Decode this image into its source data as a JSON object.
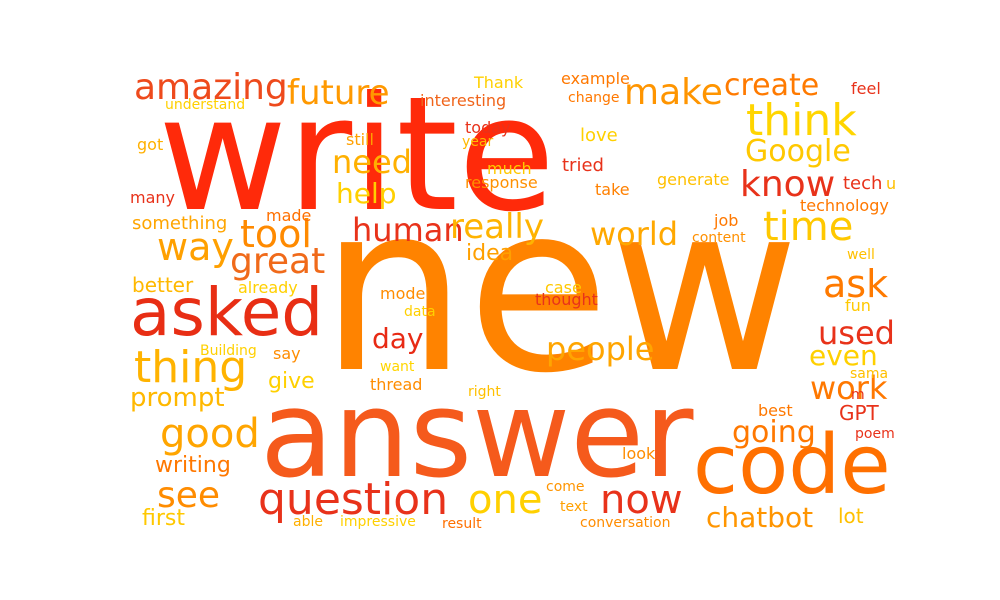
{
  "palette": {
    "red": "#e8321a",
    "orange_red": "#f45a1a",
    "orange": "#ff8300",
    "amber": "#ffa100",
    "gold": "#ffc000",
    "yellow": "#ffd500"
  },
  "words": [
    {
      "text": "new",
      "color": "#ff8300"
    },
    {
      "text": "write",
      "color": "#ff2a0a"
    },
    {
      "text": "answer",
      "color": "#f55a1c"
    },
    {
      "text": "code",
      "color": "#ff7000"
    },
    {
      "text": "asked",
      "color": "#e82e14"
    },
    {
      "text": "question",
      "color": "#e8321a"
    },
    {
      "text": "thing",
      "color": "#ffb300"
    },
    {
      "text": "think",
      "color": "#ffd500"
    },
    {
      "text": "know",
      "color": "#e8321a"
    },
    {
      "text": "amazing",
      "color": "#ee4a1c"
    },
    {
      "text": "future",
      "color": "#ff9900"
    },
    {
      "text": "make",
      "color": "#ff9500"
    },
    {
      "text": "create",
      "color": "#ff7a00"
    },
    {
      "text": "Google",
      "color": "#ffc800"
    },
    {
      "text": "need",
      "color": "#ffb000"
    },
    {
      "text": "help",
      "color": "#ffd000"
    },
    {
      "text": "time",
      "color": "#ffc800"
    },
    {
      "text": "way",
      "color": "#ffa000"
    },
    {
      "text": "tool",
      "color": "#ff8a00"
    },
    {
      "text": "great",
      "color": "#f06a1a"
    },
    {
      "text": "human",
      "color": "#e8321a"
    },
    {
      "text": "really",
      "color": "#ffb300"
    },
    {
      "text": "world",
      "color": "#ffa800"
    },
    {
      "text": "ask",
      "color": "#ff7a00"
    },
    {
      "text": "day",
      "color": "#e82a14"
    },
    {
      "text": "people",
      "color": "#ffa500"
    },
    {
      "text": "used",
      "color": "#e8321a"
    },
    {
      "text": "even",
      "color": "#ffd000"
    },
    {
      "text": "work",
      "color": "#ff7800"
    },
    {
      "text": "good",
      "color": "#ffa500"
    },
    {
      "text": "going",
      "color": "#ff7800"
    },
    {
      "text": "see",
      "color": "#ff8c00"
    },
    {
      "text": "one",
      "color": "#ffd000"
    },
    {
      "text": "now",
      "color": "#e8321a"
    },
    {
      "text": "chatbot",
      "color": "#ff9500"
    },
    {
      "text": "prompt",
      "color": "#ffb800"
    },
    {
      "text": "writing",
      "color": "#ff7800"
    },
    {
      "text": "first",
      "color": "#ffc800"
    },
    {
      "text": "better",
      "color": "#ffb800"
    },
    {
      "text": "something",
      "color": "#ffa500"
    },
    {
      "text": "give",
      "color": "#ffd000"
    },
    {
      "text": "idea",
      "color": "#ffa000"
    },
    {
      "text": "Thank",
      "color": "#ffd000"
    },
    {
      "text": "example",
      "color": "#ff7800"
    },
    {
      "text": "change",
      "color": "#ff7800"
    },
    {
      "text": "interesting",
      "color": "#f0641a"
    },
    {
      "text": "understand",
      "color": "#ffd000"
    },
    {
      "text": "feel",
      "color": "#e8321a"
    },
    {
      "text": "got",
      "color": "#ffb000"
    },
    {
      "text": "still",
      "color": "#ffa000"
    },
    {
      "text": "today",
      "color": "#e8321a"
    },
    {
      "text": "year",
      "color": "#ffb800"
    },
    {
      "text": "love",
      "color": "#ffd000"
    },
    {
      "text": "much",
      "color": "#ffc800"
    },
    {
      "text": "response",
      "color": "#ff9000"
    },
    {
      "text": "tried",
      "color": "#e8321a"
    },
    {
      "text": "generate",
      "color": "#ffc000"
    },
    {
      "text": "tech",
      "color": "#e8321a"
    },
    {
      "text": "u",
      "color": "#ffc000"
    },
    {
      "text": "take",
      "color": "#ff8000"
    },
    {
      "text": "technology",
      "color": "#ff7800"
    },
    {
      "text": "many",
      "color": "#e8321a"
    },
    {
      "text": "made",
      "color": "#ff7000"
    },
    {
      "text": "job",
      "color": "#ff7800"
    },
    {
      "text": "content",
      "color": "#ff9000"
    },
    {
      "text": "well",
      "color": "#ffc000"
    },
    {
      "text": "already",
      "color": "#ffd000"
    },
    {
      "text": "model",
      "color": "#ff8c00"
    },
    {
      "text": "case",
      "color": "#ffc800"
    },
    {
      "text": "thought",
      "color": "#e8321a"
    },
    {
      "text": "fun",
      "color": "#ffc800"
    },
    {
      "text": "data",
      "color": "#ffd000"
    },
    {
      "text": "Building",
      "color": "#ffd000"
    },
    {
      "text": "say",
      "color": "#ff8c00"
    },
    {
      "text": "want",
      "color": "#ffd500"
    },
    {
      "text": "sama",
      "color": "#ffc000"
    },
    {
      "text": "m",
      "color": "#e8321a"
    },
    {
      "text": "thread",
      "color": "#ff8c00"
    },
    {
      "text": "right",
      "color": "#ffc000"
    },
    {
      "text": "best",
      "color": "#ff7800"
    },
    {
      "text": "GPT",
      "color": "#e8321a"
    },
    {
      "text": "poem",
      "color": "#e8321a"
    },
    {
      "text": "look",
      "color": "#ff8c00"
    },
    {
      "text": "come",
      "color": "#ff9500"
    },
    {
      "text": "text",
      "color": "#ffa000"
    },
    {
      "text": "able",
      "color": "#ffb000"
    },
    {
      "text": "impressive",
      "color": "#ffd000"
    },
    {
      "text": "result",
      "color": "#ff7000"
    },
    {
      "text": "conversation",
      "color": "#ff8c00"
    },
    {
      "text": "lot",
      "color": "#ffc000"
    }
  ]
}
